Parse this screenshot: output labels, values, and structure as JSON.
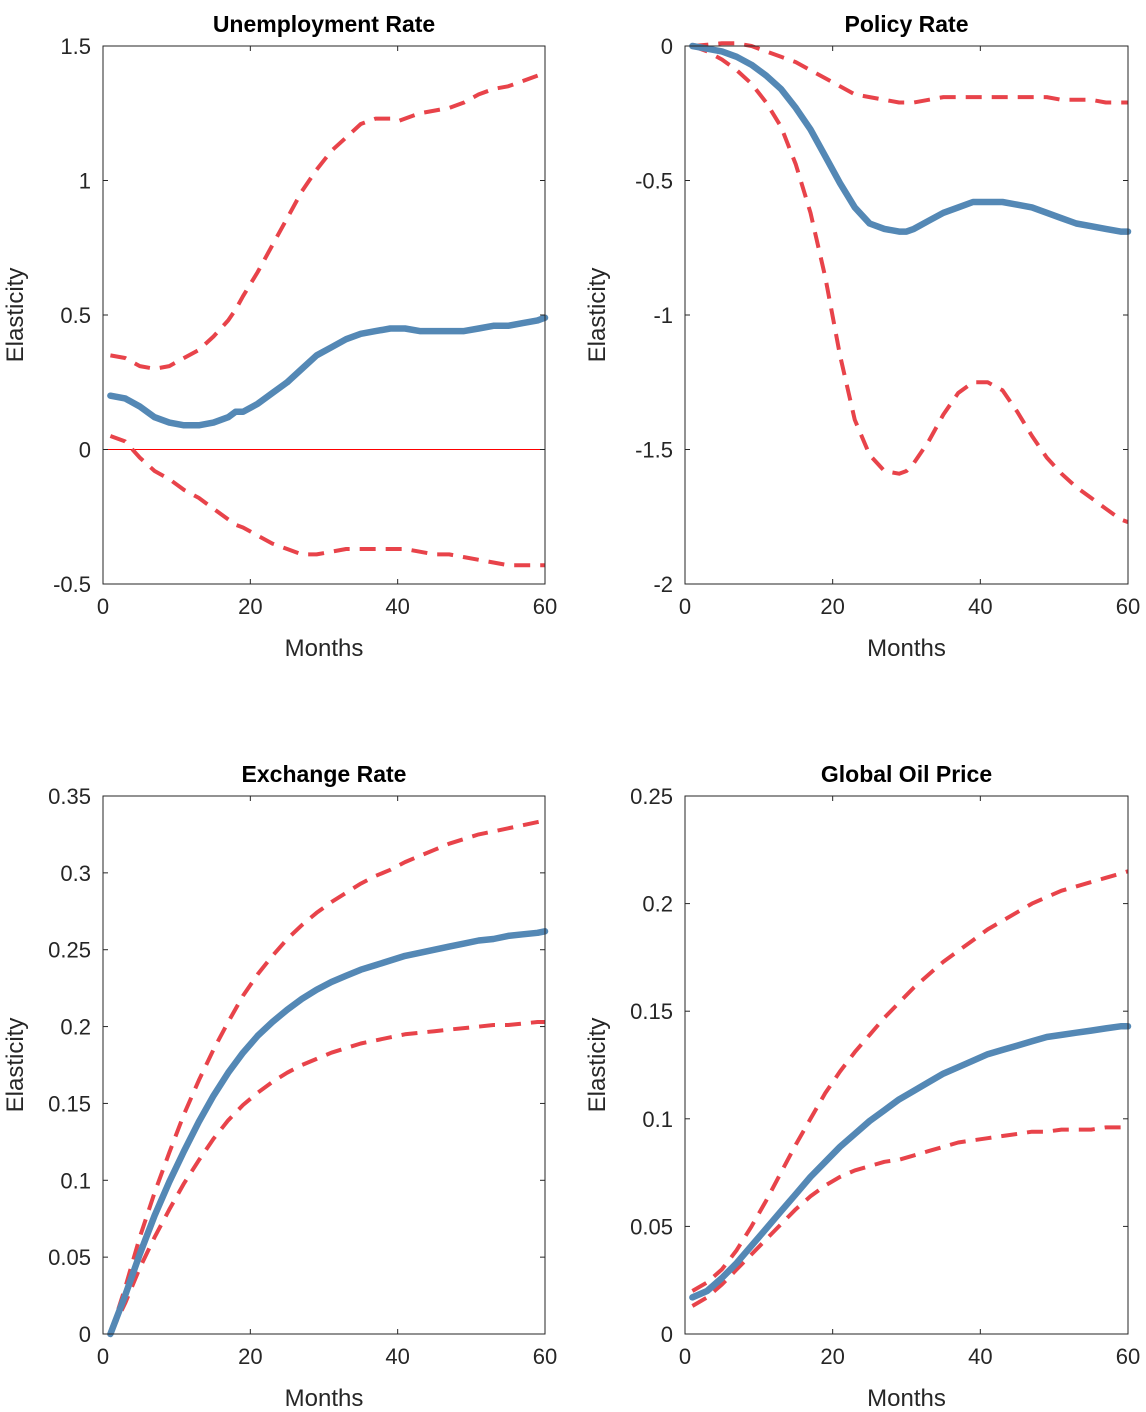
{
  "chart_data": [
    {
      "type": "line",
      "title": "Unemployment Rate",
      "xlabel": "Months",
      "ylabel": "Elasticity",
      "xlim": [
        0,
        60
      ],
      "ylim": [
        -0.5,
        1.5
      ],
      "xticks": [
        0,
        20,
        40,
        60
      ],
      "yticks": [
        -0.5,
        0,
        0.5,
        1,
        1.5
      ],
      "ytick_labels": [
        "-0.5",
        "0",
        "0.5",
        "1",
        "1.5"
      ],
      "xtick_labels": [
        "0",
        "20",
        "40",
        "60"
      ],
      "zero_line": 0,
      "x": [
        1,
        3,
        5,
        7,
        9,
        11,
        13,
        15,
        17,
        18,
        19,
        21,
        23,
        25,
        27,
        29,
        31,
        33,
        35,
        37,
        39,
        40,
        41,
        43,
        45,
        47,
        49,
        51,
        53,
        55,
        57,
        59,
        60
      ],
      "series": [
        {
          "role": "upper",
          "style": "dashed",
          "color": "#e8434a",
          "values": [
            0.35,
            0.34,
            0.31,
            0.3,
            0.31,
            0.34,
            0.37,
            0.42,
            0.48,
            0.52,
            0.57,
            0.66,
            0.76,
            0.86,
            0.96,
            1.04,
            1.11,
            1.16,
            1.21,
            1.23,
            1.23,
            1.22,
            1.23,
            1.25,
            1.26,
            1.27,
            1.29,
            1.32,
            1.34,
            1.35,
            1.37,
            1.39,
            1.4
          ]
        },
        {
          "role": "estimate",
          "style": "solid",
          "color": "#5488b5",
          "values": [
            0.2,
            0.19,
            0.16,
            0.12,
            0.1,
            0.09,
            0.09,
            0.1,
            0.12,
            0.14,
            0.14,
            0.17,
            0.21,
            0.25,
            0.3,
            0.35,
            0.38,
            0.41,
            0.43,
            0.44,
            0.45,
            0.45,
            0.45,
            0.44,
            0.44,
            0.44,
            0.44,
            0.45,
            0.46,
            0.46,
            0.47,
            0.48,
            0.49
          ]
        },
        {
          "role": "lower",
          "style": "dashed",
          "color": "#e8434a",
          "values": [
            0.05,
            0.03,
            -0.03,
            -0.08,
            -0.11,
            -0.15,
            -0.18,
            -0.22,
            -0.26,
            -0.28,
            -0.29,
            -0.32,
            -0.35,
            -0.37,
            -0.39,
            -0.39,
            -0.38,
            -0.37,
            -0.37,
            -0.37,
            -0.37,
            -0.37,
            -0.37,
            -0.38,
            -0.39,
            -0.39,
            -0.4,
            -0.41,
            -0.42,
            -0.43,
            -0.43,
            -0.43,
            -0.43
          ]
        }
      ]
    },
    {
      "type": "line",
      "title": "Policy Rate",
      "xlabel": "Months",
      "ylabel": "Elasticity",
      "xlim": [
        0,
        60
      ],
      "ylim": [
        -2,
        0
      ],
      "xticks": [
        0,
        20,
        40,
        60
      ],
      "yticks": [
        -2,
        -1.5,
        -1,
        -0.5,
        0
      ],
      "ytick_labels": [
        "-2",
        "-1.5",
        "-1",
        "-0.5",
        "0"
      ],
      "xtick_labels": [
        "0",
        "20",
        "40",
        "60"
      ],
      "zero_line": 0,
      "x": [
        1,
        3,
        5,
        7,
        9,
        11,
        13,
        15,
        17,
        19,
        21,
        23,
        25,
        27,
        29,
        30,
        31,
        33,
        35,
        37,
        39,
        41,
        43,
        45,
        47,
        49,
        51,
        53,
        55,
        57,
        59,
        60
      ],
      "series": [
        {
          "role": "upper",
          "style": "dashed",
          "color": "#e8434a",
          "values": [
            0.0,
            0.005,
            0.01,
            0.01,
            0.0,
            -0.02,
            -0.04,
            -0.06,
            -0.09,
            -0.12,
            -0.15,
            -0.18,
            -0.19,
            -0.2,
            -0.21,
            -0.21,
            -0.21,
            -0.2,
            -0.19,
            -0.19,
            -0.19,
            -0.19,
            -0.19,
            -0.19,
            -0.19,
            -0.19,
            -0.2,
            -0.2,
            -0.2,
            -0.21,
            -0.21,
            -0.21
          ]
        },
        {
          "role": "estimate",
          "style": "solid",
          "color": "#5488b5",
          "values": [
            0.0,
            -0.01,
            -0.02,
            -0.04,
            -0.07,
            -0.11,
            -0.16,
            -0.23,
            -0.31,
            -0.41,
            -0.51,
            -0.6,
            -0.66,
            -0.68,
            -0.69,
            -0.69,
            -0.68,
            -0.65,
            -0.62,
            -0.6,
            -0.58,
            -0.58,
            -0.58,
            -0.59,
            -0.6,
            -0.62,
            -0.64,
            -0.66,
            -0.67,
            -0.68,
            -0.69,
            -0.69
          ]
        },
        {
          "role": "lower",
          "style": "dashed",
          "color": "#e8434a",
          "values": [
            0.0,
            -0.02,
            -0.05,
            -0.09,
            -0.14,
            -0.21,
            -0.3,
            -0.44,
            -0.62,
            -0.86,
            -1.15,
            -1.39,
            -1.52,
            -1.58,
            -1.59,
            -1.58,
            -1.55,
            -1.47,
            -1.37,
            -1.29,
            -1.25,
            -1.25,
            -1.28,
            -1.36,
            -1.45,
            -1.53,
            -1.59,
            -1.64,
            -1.68,
            -1.72,
            -1.76,
            -1.77
          ]
        }
      ]
    },
    {
      "type": "line",
      "title": "Exchange Rate",
      "xlabel": "Months",
      "ylabel": "Elasticity",
      "xlim": [
        0,
        60
      ],
      "ylim": [
        0,
        0.35
      ],
      "xticks": [
        0,
        20,
        40,
        60
      ],
      "yticks": [
        0,
        0.05,
        0.1,
        0.15,
        0.2,
        0.25,
        0.3,
        0.35
      ],
      "ytick_labels": [
        "0",
        "0.05",
        "0.1",
        "0.15",
        "0.2",
        "0.25",
        "0.3",
        "0.35"
      ],
      "xtick_labels": [
        "0",
        "20",
        "40",
        "60"
      ],
      "zero_line": 0,
      "x": [
        1,
        3,
        5,
        7,
        9,
        11,
        13,
        15,
        17,
        19,
        21,
        23,
        25,
        27,
        29,
        31,
        33,
        35,
        37,
        39,
        41,
        43,
        45,
        47,
        49,
        51,
        53,
        55,
        57,
        59,
        60
      ],
      "series": [
        {
          "role": "upper",
          "style": "dashed",
          "color": "#e8434a",
          "values": [
            0.0,
            0.03,
            0.063,
            0.092,
            0.118,
            0.143,
            0.165,
            0.185,
            0.203,
            0.22,
            0.234,
            0.246,
            0.257,
            0.266,
            0.274,
            0.281,
            0.287,
            0.293,
            0.298,
            0.302,
            0.307,
            0.311,
            0.315,
            0.319,
            0.322,
            0.325,
            0.327,
            0.329,
            0.331,
            0.333,
            0.334
          ]
        },
        {
          "role": "estimate",
          "style": "solid",
          "color": "#5488b5",
          "values": [
            0.0,
            0.025,
            0.052,
            0.077,
            0.099,
            0.119,
            0.138,
            0.155,
            0.17,
            0.183,
            0.194,
            0.203,
            0.211,
            0.218,
            0.224,
            0.229,
            0.233,
            0.237,
            0.24,
            0.243,
            0.246,
            0.248,
            0.25,
            0.252,
            0.254,
            0.256,
            0.257,
            0.259,
            0.26,
            0.261,
            0.262
          ]
        },
        {
          "role": "lower",
          "style": "dashed",
          "color": "#e8434a",
          "values": [
            0.0,
            0.02,
            0.043,
            0.063,
            0.081,
            0.098,
            0.113,
            0.127,
            0.139,
            0.149,
            0.157,
            0.164,
            0.17,
            0.175,
            0.179,
            0.183,
            0.186,
            0.189,
            0.191,
            0.193,
            0.195,
            0.196,
            0.197,
            0.198,
            0.199,
            0.2,
            0.201,
            0.201,
            0.202,
            0.203,
            0.203
          ]
        }
      ]
    },
    {
      "type": "line",
      "title": "Global Oil Price",
      "xlabel": "Months",
      "ylabel": "Elasticity",
      "xlim": [
        0,
        60
      ],
      "ylim": [
        0,
        0.25
      ],
      "xticks": [
        0,
        20,
        40,
        60
      ],
      "yticks": [
        0,
        0.05,
        0.1,
        0.15,
        0.2,
        0.25
      ],
      "ytick_labels": [
        "0",
        "0.05",
        "0.1",
        "0.15",
        "0.2",
        "0.25"
      ],
      "xtick_labels": [
        "0",
        "20",
        "40",
        "60"
      ],
      "zero_line": 0,
      "x": [
        1,
        3,
        5,
        7,
        9,
        11,
        13,
        15,
        17,
        19,
        21,
        23,
        25,
        27,
        29,
        31,
        33,
        35,
        37,
        39,
        41,
        43,
        45,
        47,
        49,
        51,
        53,
        55,
        57,
        59,
        60
      ],
      "series": [
        {
          "role": "upper",
          "style": "dashed",
          "color": "#e8434a",
          "values": [
            0.02,
            0.024,
            0.03,
            0.039,
            0.05,
            0.062,
            0.075,
            0.088,
            0.1,
            0.112,
            0.122,
            0.131,
            0.139,
            0.147,
            0.154,
            0.161,
            0.167,
            0.173,
            0.178,
            0.183,
            0.188,
            0.192,
            0.196,
            0.2,
            0.203,
            0.206,
            0.208,
            0.21,
            0.212,
            0.214,
            0.215
          ]
        },
        {
          "role": "estimate",
          "style": "solid",
          "color": "#5488b5",
          "values": [
            0.017,
            0.02,
            0.026,
            0.033,
            0.041,
            0.049,
            0.057,
            0.065,
            0.073,
            0.08,
            0.087,
            0.093,
            0.099,
            0.104,
            0.109,
            0.113,
            0.117,
            0.121,
            0.124,
            0.127,
            0.13,
            0.132,
            0.134,
            0.136,
            0.138,
            0.139,
            0.14,
            0.141,
            0.142,
            0.143,
            0.143
          ]
        },
        {
          "role": "lower",
          "style": "dashed",
          "color": "#e8434a",
          "values": [
            0.013,
            0.017,
            0.023,
            0.03,
            0.037,
            0.044,
            0.051,
            0.058,
            0.064,
            0.069,
            0.073,
            0.076,
            0.078,
            0.08,
            0.081,
            0.083,
            0.085,
            0.087,
            0.089,
            0.09,
            0.091,
            0.092,
            0.093,
            0.094,
            0.094,
            0.095,
            0.095,
            0.095,
            0.096,
            0.096,
            0.096
          ]
        }
      ]
    }
  ]
}
